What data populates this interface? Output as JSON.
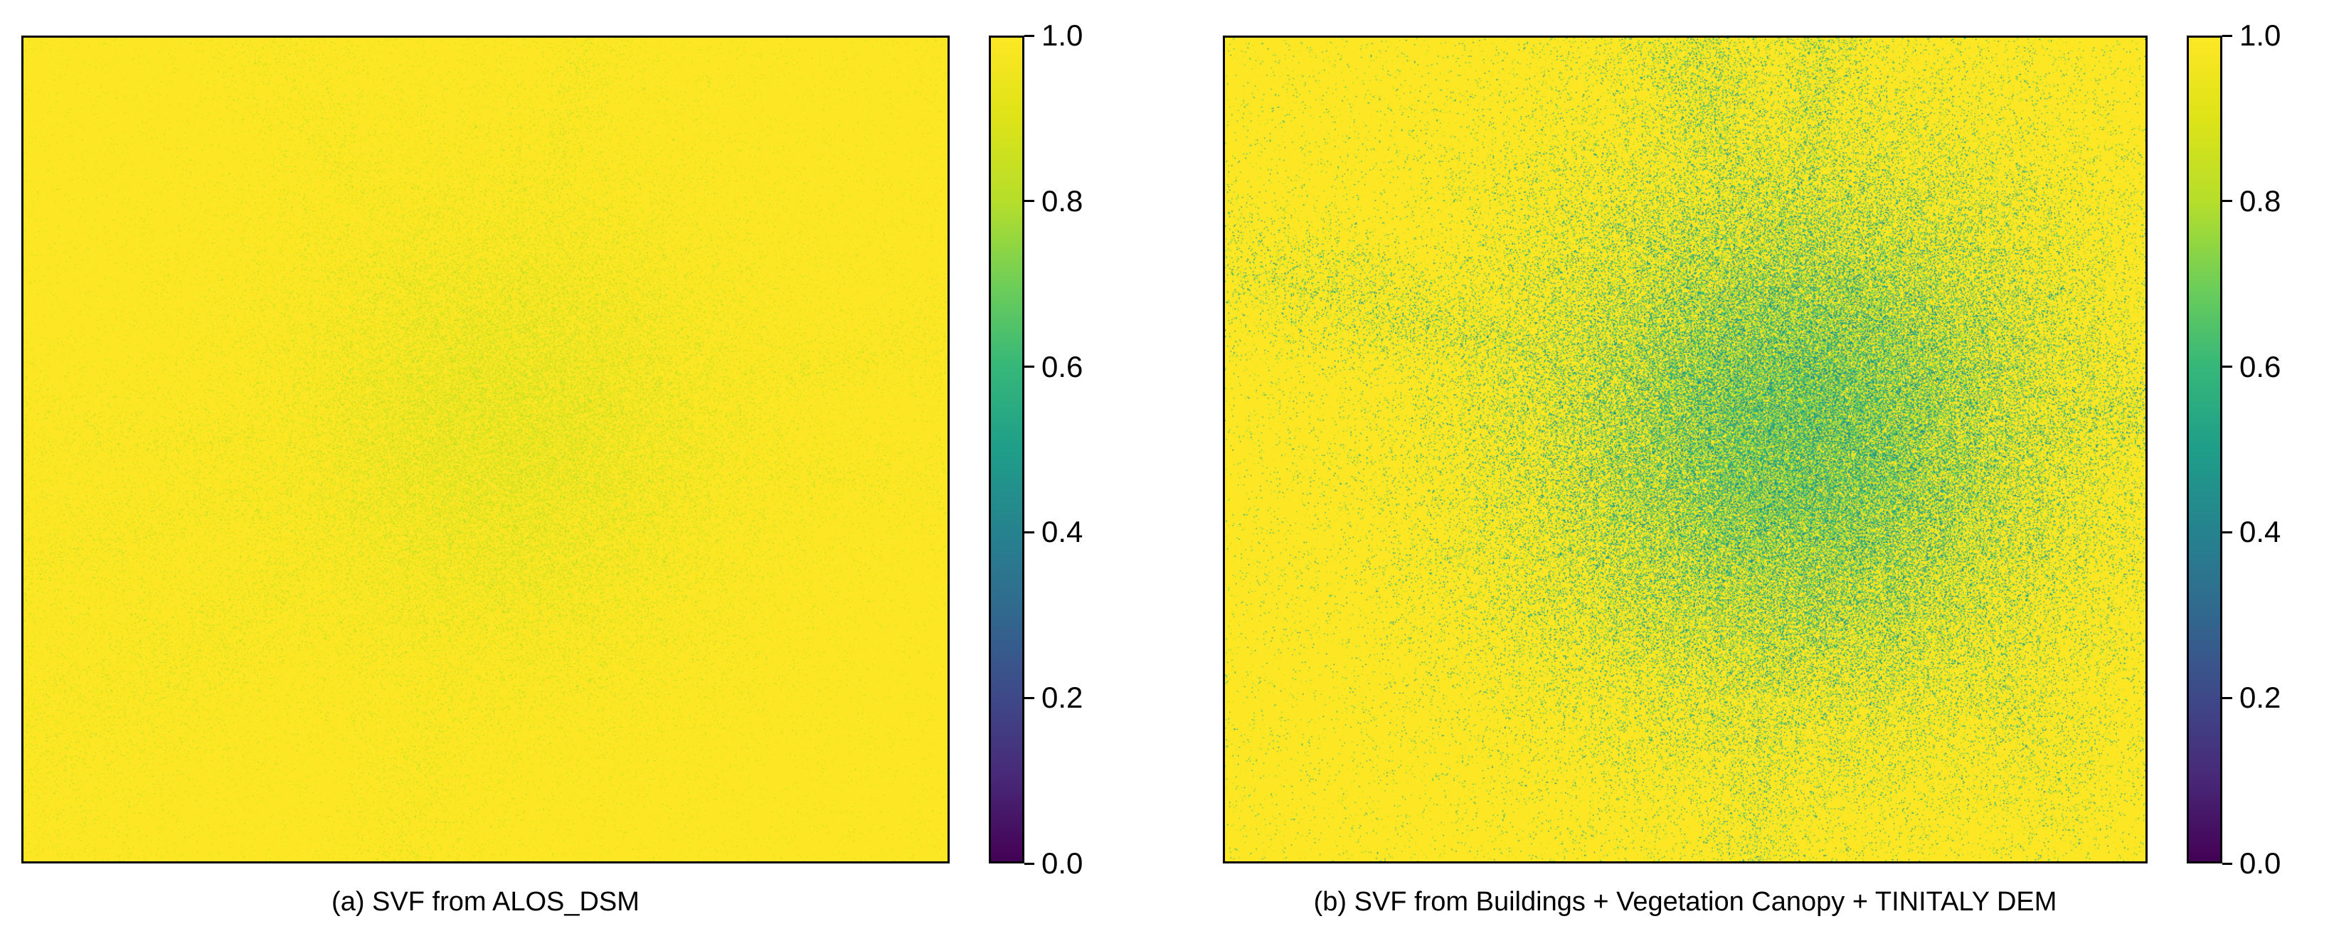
{
  "chart_data": [
    {
      "type": "heatmap",
      "title": "",
      "caption": "(a) SVF from ALOS_DSM",
      "colormap": "viridis",
      "colorbar": {
        "ticks": [
          "0.0",
          "0.2",
          "0.4",
          "0.6",
          "0.8",
          "1.0"
        ],
        "vmin": 0.0,
        "vmax": 1.0
      },
      "background_value": 1.0,
      "urban_core_value_min": 0.8,
      "description_values": {
        "dominant": 0.98,
        "urban": 0.85
      },
      "grid": false,
      "xlabel": "",
      "ylabel": ""
    },
    {
      "type": "heatmap",
      "title": "",
      "caption": "(b) SVF from Buildings + Vegetation Canopy + TINITALY DEM",
      "colormap": "viridis",
      "colorbar": {
        "ticks": [
          "0.0",
          "0.2",
          "0.4",
          "0.6",
          "0.8",
          "1.0"
        ],
        "vmin": 0.0,
        "vmax": 1.0
      },
      "background_value": 1.0,
      "urban_core_value_min": 0.4,
      "description_values": {
        "dominant": 0.95,
        "urban": 0.55
      },
      "grid": false,
      "xlabel": "",
      "ylabel": ""
    }
  ],
  "colors": {
    "viridis_low": "#440154",
    "viridis_mid": "#21918c",
    "viridis_high": "#fde725",
    "axis": "#000000"
  }
}
